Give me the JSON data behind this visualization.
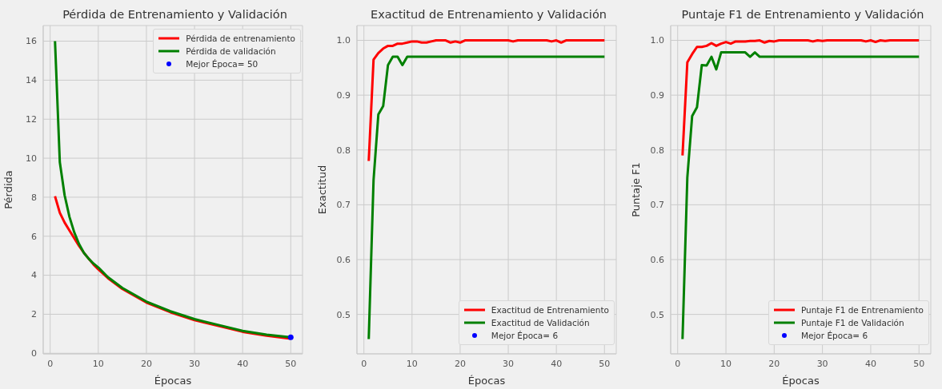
{
  "chart_data": [
    {
      "type": "line",
      "title": "Pérdida de Entrenamiento y Validación",
      "xlabel": "Épocas",
      "ylabel": "Pérdida",
      "xlim": [
        -1.45,
        52.45
      ],
      "xticks": [
        0,
        10,
        20,
        30,
        40,
        50
      ],
      "ylim": [
        -0.03,
        16.8
      ],
      "yticks": [
        0,
        2,
        4,
        6,
        8,
        10,
        12,
        14,
        16
      ],
      "grid": true,
      "legend": "top right",
      "series": [
        {
          "name": "Pérdida de entrenamiento",
          "color": "#ff0000",
          "x": [
            1,
            2,
            3,
            4,
            5,
            6,
            7,
            8,
            9,
            10,
            12,
            15,
            20,
            25,
            30,
            35,
            40,
            45,
            50
          ],
          "values": [
            8.05,
            7.2,
            6.7,
            6.3,
            5.9,
            5.5,
            5.15,
            4.85,
            4.55,
            4.3,
            3.85,
            3.3,
            2.6,
            2.1,
            1.7,
            1.4,
            1.1,
            0.9,
            0.75
          ]
        },
        {
          "name": "Pérdida de validación",
          "color": "#008000",
          "x": [
            1,
            2,
            3,
            4,
            5,
            6,
            7,
            8,
            9,
            10,
            12,
            15,
            20,
            25,
            30,
            35,
            40,
            45,
            50
          ],
          "values": [
            16,
            9.8,
            8.1,
            7.0,
            6.2,
            5.6,
            5.15,
            4.85,
            4.6,
            4.4,
            3.9,
            3.35,
            2.65,
            2.15,
            1.75,
            1.45,
            1.15,
            0.95,
            0.82
          ]
        },
        {
          "name": "Mejor Época= 50",
          "type": "scatter",
          "color": "#0000ff",
          "x": [
            50
          ],
          "values": [
            0.82
          ]
        }
      ]
    },
    {
      "type": "line",
      "title": "Exactitud de Entrenamiento y Validación",
      "xlabel": "Épocas",
      "ylabel": "Exactitud",
      "xlim": [
        -1.45,
        52.45
      ],
      "xticks": [
        0,
        10,
        20,
        30,
        40,
        50
      ],
      "ylim": [
        0.428,
        1.027
      ],
      "yticks": [
        0.5,
        0.6,
        0.7,
        0.8,
        0.9,
        {
          "value": 1,
          "label": "1.0"
        }
      ],
      "grid": true,
      "legend": "bottom right",
      "series": [
        {
          "name": "Exactitud de Entrenamiento",
          "color": "#ff0000",
          "x": [
            1,
            2,
            3,
            4,
            5,
            6,
            7,
            8,
            9,
            10,
            11,
            12,
            13,
            14,
            15,
            16,
            17,
            18,
            19,
            20,
            21,
            22,
            23,
            24,
            25,
            26,
            27,
            28,
            29,
            30,
            31,
            32,
            33,
            34,
            35,
            36,
            37,
            38,
            39,
            40,
            41,
            42,
            43,
            44,
            45,
            46,
            47,
            48,
            49,
            50
          ],
          "values": [
            0.78,
            0.965,
            0.977,
            0.985,
            0.99,
            0.99,
            0.994,
            0.994,
            0.996,
            0.998,
            0.998,
            0.996,
            0.996,
            0.998,
            1,
            1,
            1,
            0.996,
            0.998,
            0.996,
            1,
            1,
            1,
            1,
            1,
            1,
            1,
            1,
            1,
            1,
            0.998,
            1,
            1,
            1,
            1,
            1,
            1,
            1,
            0.998,
            1,
            0.996,
            1,
            1,
            1,
            1,
            1,
            1,
            1,
            1,
            1
          ]
        },
        {
          "name": "Exactitud de Validación",
          "color": "#008000",
          "x": [
            1,
            2,
            3,
            4,
            5,
            6,
            7,
            8,
            9,
            10,
            11,
            12,
            13,
            14,
            15,
            16,
            17,
            18,
            19,
            20,
            21,
            22,
            23,
            24,
            25,
            26,
            27,
            28,
            29,
            30,
            31,
            32,
            33,
            34,
            35,
            36,
            37,
            38,
            39,
            40,
            41,
            42,
            43,
            44,
            45,
            46,
            47,
            48,
            49,
            50
          ],
          "values": [
            0.455,
            0.745,
            0.865,
            0.88,
            0.955,
            0.97,
            0.97,
            0.955,
            0.97,
            0.97,
            0.97,
            0.97,
            0.97,
            0.97,
            0.97,
            0.97,
            0.97,
            0.97,
            0.97,
            0.97,
            0.97,
            0.97,
            0.97,
            0.97,
            0.97,
            0.97,
            0.97,
            0.97,
            0.97,
            0.97,
            0.97,
            0.97,
            0.97,
            0.97,
            0.97,
            0.97,
            0.97,
            0.97,
            0.97,
            0.97,
            0.97,
            0.97,
            0.97,
            0.97,
            0.97,
            0.97,
            0.97,
            0.97,
            0.97,
            0.97
          ]
        },
        {
          "name": "Mejor Época= 6",
          "type": "scatter",
          "color": "#0000ff"
        }
      ]
    },
    {
      "type": "line",
      "title": "Puntaje F1 de Entrenamiento y Validación",
      "xlabel": "Épocas",
      "ylabel": "Puntaje F1",
      "xlim": [
        -1.45,
        52.45
      ],
      "xticks": [
        0,
        10,
        20,
        30,
        40,
        50
      ],
      "ylim": [
        0.428,
        1.027
      ],
      "yticks": [
        0.5,
        0.6,
        0.7,
        0.8,
        0.9,
        {
          "value": 1,
          "label": "1.0"
        }
      ],
      "grid": true,
      "legend": "bottom right",
      "series": [
        {
          "name": "Puntaje F1 de Entrenamiento",
          "color": "#ff0000",
          "x": [
            1,
            2,
            3,
            4,
            5,
            6,
            7,
            8,
            9,
            10,
            11,
            12,
            13,
            14,
            15,
            16,
            17,
            18,
            19,
            20,
            21,
            22,
            23,
            24,
            25,
            26,
            27,
            28,
            29,
            30,
            31,
            32,
            33,
            34,
            35,
            36,
            37,
            38,
            39,
            40,
            41,
            42,
            43,
            44,
            45,
            46,
            47,
            48,
            49,
            50
          ],
          "values": [
            0.79,
            0.96,
            0.975,
            0.988,
            0.988,
            0.99,
            0.995,
            0.99,
            0.994,
            0.997,
            0.994,
            0.998,
            0.998,
            0.998,
            0.999,
            0.999,
            1,
            0.996,
            0.999,
            0.998,
            1,
            1,
            1,
            1,
            1,
            1,
            1,
            0.998,
            1,
            0.999,
            1,
            1,
            1,
            1,
            1,
            1,
            1,
            1,
            0.998,
            1,
            0.997,
            1,
            0.999,
            1,
            1,
            1,
            1,
            1,
            1,
            1
          ]
        },
        {
          "name": "Puntaje F1 de Validación",
          "color": "#008000",
          "x": [
            1,
            2,
            3,
            4,
            5,
            6,
            7,
            8,
            9,
            10,
            11,
            12,
            13,
            14,
            15,
            16,
            17,
            18,
            19,
            20,
            21,
            22,
            23,
            24,
            25,
            26,
            27,
            28,
            29,
            30,
            31,
            32,
            33,
            34,
            35,
            36,
            37,
            38,
            39,
            40,
            41,
            42,
            43,
            44,
            45,
            46,
            47,
            48,
            49,
            50
          ],
          "values": [
            0.455,
            0.75,
            0.862,
            0.878,
            0.955,
            0.954,
            0.97,
            0.947,
            0.978,
            0.978,
            0.978,
            0.978,
            0.978,
            0.978,
            0.97,
            0.978,
            0.97,
            0.97,
            0.97,
            0.97,
            0.97,
            0.97,
            0.97,
            0.97,
            0.97,
            0.97,
            0.97,
            0.97,
            0.97,
            0.97,
            0.97,
            0.97,
            0.97,
            0.97,
            0.97,
            0.97,
            0.97,
            0.97,
            0.97,
            0.97,
            0.97,
            0.97,
            0.97,
            0.97,
            0.97,
            0.97,
            0.97,
            0.97,
            0.97,
            0.97
          ]
        },
        {
          "name": "Mejor Época= 6",
          "type": "scatter",
          "color": "#0000ff"
        }
      ]
    }
  ]
}
